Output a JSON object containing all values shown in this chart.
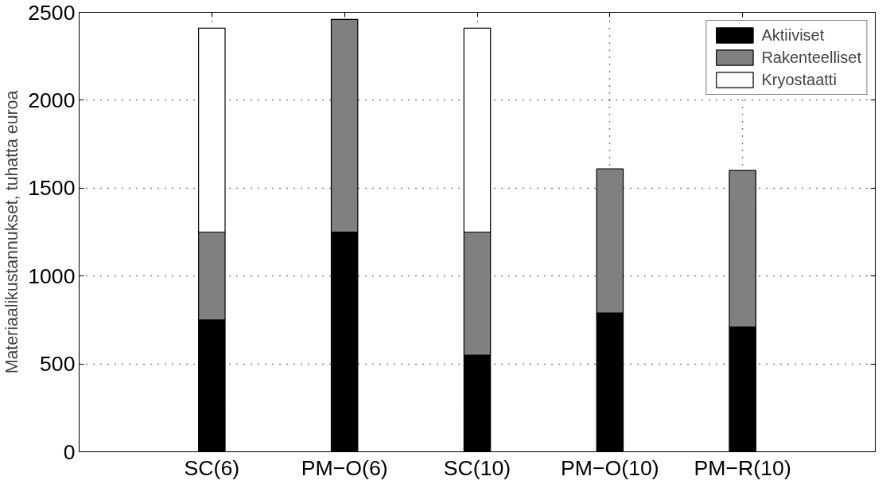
{
  "chart_data": {
    "type": "bar",
    "stacked": true,
    "ylabel": "Materiaalikustannukset, tuhatta euroa",
    "categories": [
      "SC(6)",
      "PM−O(6)",
      "SC(10)",
      "PM−O(10)",
      "PM−R(10)"
    ],
    "series": [
      {
        "name": "Aktiiviset",
        "color": "#000000",
        "values": [
          750,
          1250,
          550,
          790,
          710
        ]
      },
      {
        "name": "Rakenteelliset",
        "color": "#808080",
        "values": [
          500,
          1210,
          700,
          820,
          890
        ]
      },
      {
        "name": "Kryostaatti",
        "color": "#ffffff",
        "values": [
          1160,
          null,
          1160,
          null,
          null
        ]
      }
    ],
    "ylim": [
      0,
      2500
    ],
    "yticks": [
      0,
      500,
      1000,
      1500,
      2000,
      2500
    ],
    "grid": true,
    "legend": "top right"
  }
}
